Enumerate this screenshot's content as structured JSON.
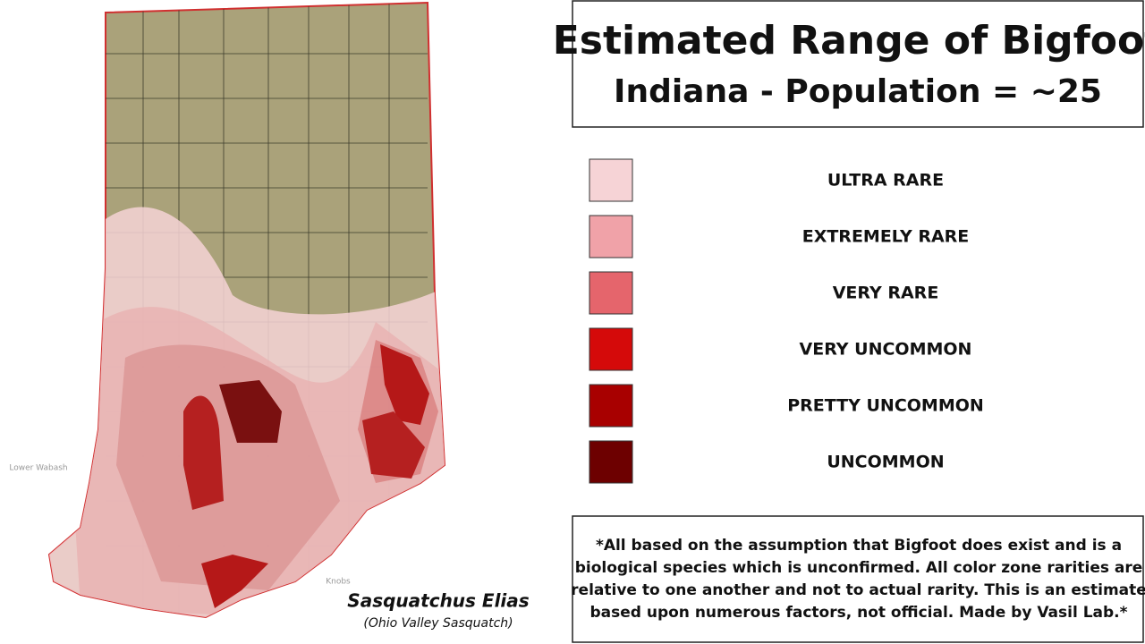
{
  "header": {
    "title": "Estimated Range of Bigfoot",
    "subtitle": "Indiana - Population = ~25"
  },
  "legend": [
    {
      "label": "ULTRA RARE",
      "color": "#f6d3d6"
    },
    {
      "label": "EXTREMELY RARE",
      "color": "#f0a2a8"
    },
    {
      "label": "VERY RARE",
      "color": "#e5656c"
    },
    {
      "label": "VERY UNCOMMON",
      "color": "#d50a0a"
    },
    {
      "label": "PRETTY UNCOMMON",
      "color": "#a80000"
    },
    {
      "label": "UNCOMMON",
      "color": "#6d0000"
    }
  ],
  "note": {
    "lines": [
      "*All based on the assumption that Bigfoot does exist and is a",
      "biological species which is unconfirmed. All color zone rarities are",
      "relative to one another and not to actual rarity. This is an estimate",
      "based upon numerous factors, not official. Made by Vasil Lab.*"
    ]
  },
  "map": {
    "species": "Sasquatchus Elias",
    "common_name": "(Ohio Valley Sasquatch)",
    "labels": [
      "Lower Wabash",
      "Knobs"
    ]
  }
}
